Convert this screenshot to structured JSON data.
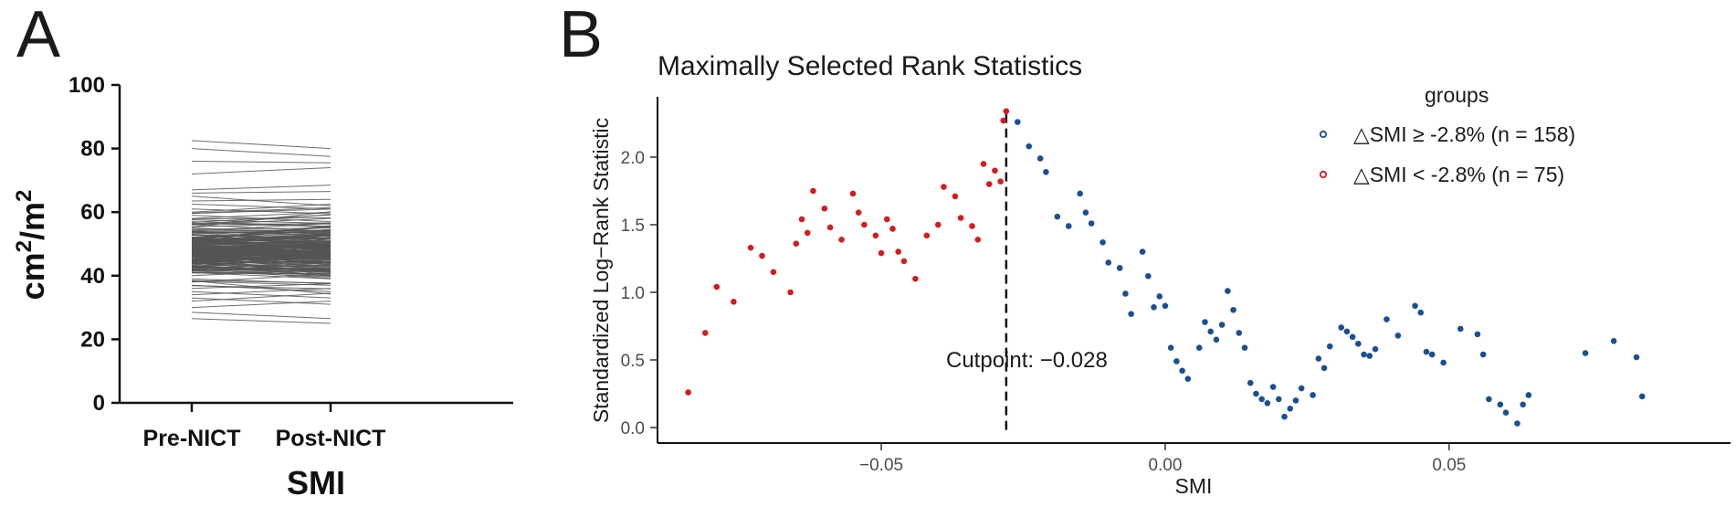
{
  "colors": {
    "axis": "#111111",
    "paired_lines": "#555555",
    "high_group": "#1d4f8f",
    "low_group": "#cc1f24",
    "cutpoint_line": "#111111"
  },
  "panel_a": {
    "letter": "A",
    "ylabel_main": "cm",
    "ylabel_sup1": "2",
    "ylabel_mid": "/m",
    "ylabel_sup2": "2",
    "chart_data": {
      "type": "line",
      "title": "",
      "xlabel": "SMI",
      "categories": [
        "Pre-NICT",
        "Post-NICT"
      ],
      "yticks": [
        0,
        20,
        40,
        60,
        80,
        100
      ],
      "ylim": [
        0,
        100
      ],
      "series_count": 233,
      "series": [
        {
          "pre": 82.5,
          "post": 80.0
        },
        {
          "pre": 80.0,
          "post": 77.5
        },
        {
          "pre": 76.0,
          "post": 75.5
        },
        {
          "pre": 72.0,
          "post": 74.0
        },
        {
          "pre": 67.0,
          "post": 68.5
        },
        {
          "pre": 66.0,
          "post": 66.5
        },
        {
          "pre": 65.0,
          "post": 62.0
        },
        {
          "pre": 63.5,
          "post": 64.0
        },
        {
          "pre": 62.5,
          "post": 61.0
        },
        {
          "pre": 61.0,
          "post": 59.5
        },
        {
          "pre": 60.0,
          "post": 62.5
        },
        {
          "pre": 59.0,
          "post": 57.0
        },
        {
          "pre": 58.0,
          "post": 60.0
        },
        {
          "pre": 57.0,
          "post": 55.5
        },
        {
          "pre": 56.0,
          "post": 58.0
        },
        {
          "pre": 55.0,
          "post": 53.0
        },
        {
          "pre": 54.0,
          "post": 56.5
        },
        {
          "pre": 53.0,
          "post": 51.5
        },
        {
          "pre": 52.0,
          "post": 54.0
        },
        {
          "pre": 51.0,
          "post": 49.0
        },
        {
          "pre": 50.0,
          "post": 52.5
        },
        {
          "pre": 49.0,
          "post": 47.5
        },
        {
          "pre": 48.0,
          "post": 50.0
        },
        {
          "pre": 47.0,
          "post": 45.5
        },
        {
          "pre": 46.0,
          "post": 48.5
        },
        {
          "pre": 45.0,
          "post": 43.0
        },
        {
          "pre": 44.0,
          "post": 46.0
        },
        {
          "pre": 43.0,
          "post": 41.5
        },
        {
          "pre": 42.0,
          "post": 44.5
        },
        {
          "pre": 41.0,
          "post": 39.0
        },
        {
          "pre": 40.0,
          "post": 42.0
        },
        {
          "pre": 39.0,
          "post": 37.5
        },
        {
          "pre": 38.0,
          "post": 40.5
        },
        {
          "pre": 37.0,
          "post": 35.0
        },
        {
          "pre": 36.0,
          "post": 37.5
        },
        {
          "pre": 35.0,
          "post": 33.0
        },
        {
          "pre": 34.0,
          "post": 36.0
        },
        {
          "pre": 33.0,
          "post": 31.0
        },
        {
          "pre": 32.0,
          "post": 34.5
        },
        {
          "pre": 30.0,
          "post": 32.0
        },
        {
          "pre": 28.5,
          "post": 26.5
        },
        {
          "pre": 26.5,
          "post": 25.0
        }
      ]
    }
  },
  "panel_b": {
    "letter": "B",
    "cutpoint_label": "Cutpoint: −0.028",
    "legend": {
      "title": "groups",
      "items": [
        {
          "label": "△SMI ≥ -2.8% (n = 158)",
          "color": "#1d4f8f"
        },
        {
          "label": "△SMI < -2.8% (n = 75)",
          "color": "#cc1f24"
        }
      ]
    },
    "chart_data": {
      "type": "scatter",
      "title": "Maximally Selected Rank Statistics",
      "xlabel": "SMI",
      "ylabel": "Standardized Log−Rank Statistic",
      "xlim": [
        -0.087,
        0.092
      ],
      "ylim": [
        -0.1,
        2.45
      ],
      "xticks": [
        -0.05,
        0.0,
        0.05
      ],
      "xtick_labels": [
        "−0.05",
        "0.00",
        "0.05"
      ],
      "yticks": [
        0.0,
        0.5,
        1.0,
        1.5,
        2.0
      ],
      "ytick_labels": [
        "0.0",
        "0.5",
        "1.0",
        "1.5",
        "2.0"
      ],
      "cutpoint": -0.028,
      "series": [
        {
          "name": "△SMI < -2.8% (n = 75)",
          "color": "#cc1f24",
          "points": [
            [
              -0.084,
              0.26
            ],
            [
              -0.081,
              0.7
            ],
            [
              -0.079,
              1.04
            ],
            [
              -0.076,
              0.93
            ],
            [
              -0.073,
              1.33
            ],
            [
              -0.071,
              1.27
            ],
            [
              -0.069,
              1.15
            ],
            [
              -0.066,
              1.0
            ],
            [
              -0.065,
              1.36
            ],
            [
              -0.064,
              1.54
            ],
            [
              -0.063,
              1.44
            ],
            [
              -0.062,
              1.75
            ],
            [
              -0.06,
              1.62
            ],
            [
              -0.059,
              1.48
            ],
            [
              -0.057,
              1.39
            ],
            [
              -0.055,
              1.73
            ],
            [
              -0.054,
              1.59
            ],
            [
              -0.053,
              1.5
            ],
            [
              -0.051,
              1.42
            ],
            [
              -0.05,
              1.29
            ],
            [
              -0.049,
              1.54
            ],
            [
              -0.048,
              1.47
            ],
            [
              -0.047,
              1.3
            ],
            [
              -0.046,
              1.23
            ],
            [
              -0.044,
              1.1
            ],
            [
              -0.042,
              1.42
            ],
            [
              -0.04,
              1.5
            ],
            [
              -0.039,
              1.78
            ],
            [
              -0.037,
              1.71
            ],
            [
              -0.036,
              1.55
            ],
            [
              -0.034,
              1.49
            ],
            [
              -0.033,
              1.39
            ],
            [
              -0.032,
              1.95
            ],
            [
              -0.031,
              1.8
            ],
            [
              -0.03,
              1.9
            ],
            [
              -0.029,
              1.82
            ],
            [
              -0.0285,
              2.27
            ],
            [
              -0.028,
              2.34
            ]
          ]
        },
        {
          "name": "△SMI ≥ -2.8% (n = 158)",
          "color": "#1d4f8f",
          "points": [
            [
              -0.026,
              2.26
            ],
            [
              -0.024,
              2.08
            ],
            [
              -0.022,
              1.99
            ],
            [
              -0.021,
              1.89
            ],
            [
              -0.019,
              1.56
            ],
            [
              -0.017,
              1.49
            ],
            [
              -0.015,
              1.73
            ],
            [
              -0.014,
              1.59
            ],
            [
              -0.013,
              1.51
            ],
            [
              -0.011,
              1.37
            ],
            [
              -0.01,
              1.22
            ],
            [
              -0.008,
              1.18
            ],
            [
              -0.007,
              0.99
            ],
            [
              -0.006,
              0.84
            ],
            [
              -0.004,
              1.3
            ],
            [
              -0.003,
              1.12
            ],
            [
              -0.002,
              0.89
            ],
            [
              -0.001,
              0.97
            ],
            [
              0.0,
              0.9
            ],
            [
              0.001,
              0.59
            ],
            [
              0.002,
              0.49
            ],
            [
              0.003,
              0.42
            ],
            [
              0.004,
              0.36
            ],
            [
              0.006,
              0.59
            ],
            [
              0.007,
              0.78
            ],
            [
              0.008,
              0.71
            ],
            [
              0.009,
              0.65
            ],
            [
              0.01,
              0.76
            ],
            [
              0.011,
              1.01
            ],
            [
              0.012,
              0.87
            ],
            [
              0.013,
              0.7
            ],
            [
              0.014,
              0.59
            ],
            [
              0.015,
              0.33
            ],
            [
              0.016,
              0.25
            ],
            [
              0.017,
              0.21
            ],
            [
              0.018,
              0.18
            ],
            [
              0.019,
              0.3
            ],
            [
              0.02,
              0.21
            ],
            [
              0.021,
              0.08
            ],
            [
              0.022,
              0.14
            ],
            [
              0.023,
              0.2
            ],
            [
              0.024,
              0.29
            ],
            [
              0.026,
              0.24
            ],
            [
              0.027,
              0.51
            ],
            [
              0.028,
              0.44
            ],
            [
              0.029,
              0.6
            ],
            [
              0.031,
              0.74
            ],
            [
              0.032,
              0.71
            ],
            [
              0.033,
              0.67
            ],
            [
              0.034,
              0.62
            ],
            [
              0.035,
              0.54
            ],
            [
              0.036,
              0.53
            ],
            [
              0.037,
              0.58
            ],
            [
              0.039,
              0.8
            ],
            [
              0.041,
              0.68
            ],
            [
              0.044,
              0.9
            ],
            [
              0.045,
              0.85
            ],
            [
              0.046,
              0.56
            ],
            [
              0.047,
              0.54
            ],
            [
              0.049,
              0.48
            ],
            [
              0.052,
              0.73
            ],
            [
              0.055,
              0.69
            ],
            [
              0.056,
              0.54
            ],
            [
              0.057,
              0.21
            ],
            [
              0.059,
              0.17
            ],
            [
              0.06,
              0.11
            ],
            [
              0.062,
              0.03
            ],
            [
              0.063,
              0.17
            ],
            [
              0.064,
              0.24
            ],
            [
              0.074,
              0.55
            ],
            [
              0.079,
              0.64
            ],
            [
              0.083,
              0.52
            ],
            [
              0.084,
              0.23
            ]
          ]
        }
      ]
    }
  }
}
